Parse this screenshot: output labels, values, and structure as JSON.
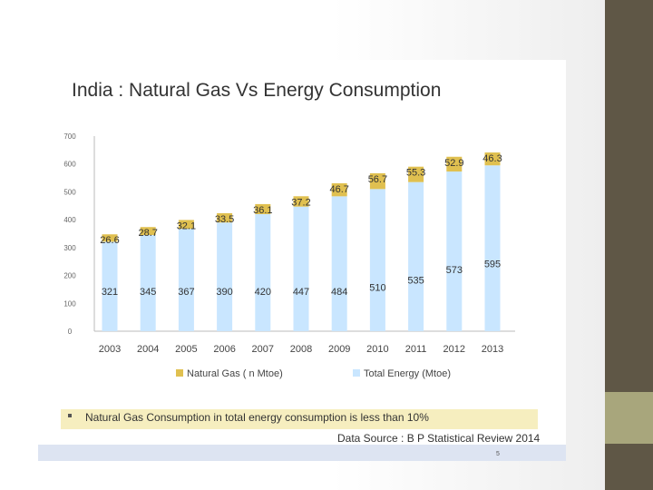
{
  "slide": {
    "title": "India : Natural Gas  Vs Energy Consumption",
    "note": "Natural Gas Consumption in total energy consumption is less than 10%",
    "source": "Data Source : B P Statistical Review 2014",
    "page_number": "5"
  },
  "colors": {
    "natural_gas": "#e0c050",
    "total_energy": "#c9e6ff",
    "sidebar": "#5f5746",
    "sidebar_block": "#a8a67c"
  },
  "chart_data": {
    "type": "bar",
    "stacked": true,
    "categories": [
      "2003",
      "2004",
      "2005",
      "2006",
      "2007",
      "2008",
      "2009",
      "2010",
      "2011",
      "2012",
      "2013"
    ],
    "series": [
      {
        "name": "Total Energy (Mtoe)",
        "values": [
          321,
          345,
          367,
          390,
          420,
          447,
          484,
          510,
          535,
          573,
          595
        ],
        "labels": [
          "321",
          "345",
          "367",
          "390",
          "420",
          "447",
          "484",
          "510",
          "535",
          "573",
          "595"
        ]
      },
      {
        "name": "Natural Gas ( n Mtoe)",
        "values": [
          26.6,
          28.7,
          32.1,
          33.5,
          36.1,
          37.2,
          46.7,
          56.7,
          55.3,
          52.9,
          46.3
        ],
        "labels": [
          "26.6",
          "28.7",
          "32.1",
          "33.5",
          "36.1",
          "37.2",
          "46.7",
          "56.7",
          "55.3",
          "52.9",
          "46.3"
        ]
      }
    ],
    "y_ticks": [
      "0",
      "100",
      "200",
      "300",
      "400",
      "500",
      "600",
      "700"
    ],
    "ylim": [
      0,
      700
    ],
    "legend": [
      "Natural Gas ( n Mtoe)",
      "Total Energy (Mtoe)"
    ],
    "legend_position": "bottom"
  }
}
